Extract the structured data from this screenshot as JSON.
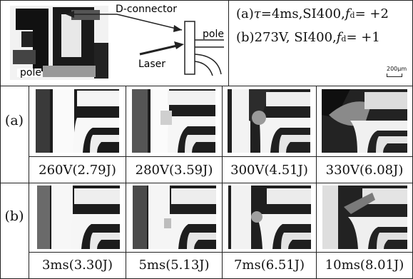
{
  "schematic": {
    "label_connector": "D-connector",
    "label_pole_left": "pole",
    "label_pole_right": "pole",
    "label_laser": "Laser"
  },
  "conditions": [
    {
      "prefix": "(a) ",
      "symbol": "τ",
      "text": " =4ms,SI400, ",
      "param": "f",
      "sub": "d",
      "suffix": "= +2"
    },
    {
      "prefix": "(b) ",
      "symbol": "",
      "text": "273V, SI400, ",
      "param": "f",
      "sub": "d",
      "suffix": "= +1"
    }
  ],
  "scale_bar": "200μm",
  "rows": [
    {
      "label": "(a)",
      "captions": [
        "260V(2.79J)",
        "280V(3.59J)",
        "300V(4.51J)",
        "330V(6.08J)"
      ]
    },
    {
      "label": "(b)",
      "captions": [
        "3ms(3.30J)",
        "5ms(5.13J)",
        "7ms(6.51J)",
        "10ms(8.01J)"
      ]
    }
  ]
}
